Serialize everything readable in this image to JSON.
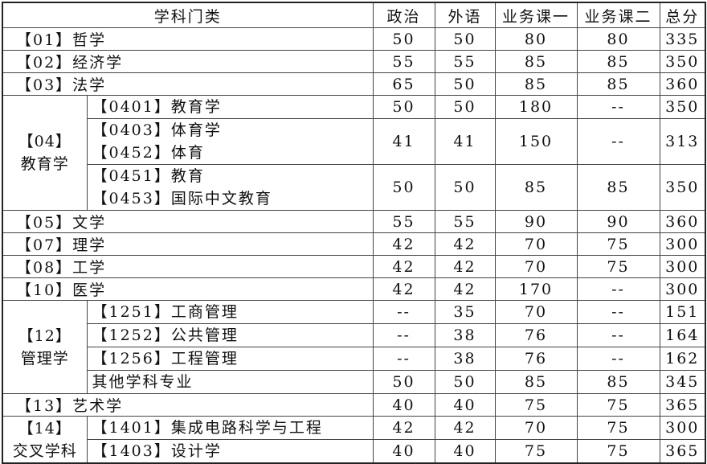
{
  "headers": [
    "学科门类",
    "政治",
    "外语",
    "业务课一",
    "业务课二",
    "总分"
  ],
  "rows": [
    {
      "label": "【01】哲学",
      "scores": [
        "50",
        "50",
        "80",
        "80",
        "335"
      ]
    },
    {
      "label": "【02】经济学",
      "scores": [
        "55",
        "55",
        "85",
        "85",
        "350"
      ]
    },
    {
      "label": "【03】法学",
      "scores": [
        "65",
        "50",
        "85",
        "85",
        "360"
      ]
    },
    {
      "group": [
        "【04】",
        "教育学"
      ],
      "items": [
        {
          "lines": [
            "【0401】教育学"
          ],
          "scores": [
            "50",
            "50",
            "180",
            "--",
            "350"
          ]
        },
        {
          "lines": [
            "【0403】体育学",
            "【0452】体育"
          ],
          "scores": [
            "41",
            "41",
            "150",
            "--",
            "313"
          ]
        },
        {
          "lines": [
            "【0451】教育",
            "【0453】国际中文教育"
          ],
          "scores": [
            "50",
            "50",
            "85",
            "85",
            "350"
          ]
        }
      ]
    },
    {
      "label": "【05】文学",
      "scores": [
        "55",
        "55",
        "90",
        "90",
        "360"
      ]
    },
    {
      "label": "【07】理学",
      "scores": [
        "42",
        "42",
        "70",
        "75",
        "300"
      ]
    },
    {
      "label": "【08】工学",
      "scores": [
        "42",
        "42",
        "70",
        "75",
        "300"
      ]
    },
    {
      "label": "【10】医学",
      "scores": [
        "42",
        "42",
        "170",
        "--",
        "300"
      ]
    },
    {
      "group": [
        "【12】",
        "管理学"
      ],
      "items": [
        {
          "lines": [
            "【1251】工商管理"
          ],
          "scores": [
            "--",
            "35",
            "70",
            "--",
            "151"
          ]
        },
        {
          "lines": [
            "【1252】公共管理"
          ],
          "scores": [
            "--",
            "38",
            "76",
            "--",
            "164"
          ]
        },
        {
          "lines": [
            "【1256】工程管理"
          ],
          "scores": [
            "--",
            "38",
            "76",
            "--",
            "162"
          ]
        },
        {
          "lines": [
            "其他学科专业"
          ],
          "scores": [
            "50",
            "50",
            "85",
            "85",
            "345"
          ]
        }
      ]
    },
    {
      "label": "【13】艺术学",
      "scores": [
        "40",
        "40",
        "75",
        "75",
        "365"
      ]
    },
    {
      "group": [
        "【14】",
        "交叉学科"
      ],
      "items": [
        {
          "lines": [
            "【1401】集成电路科学与工程"
          ],
          "scores": [
            "42",
            "42",
            "70",
            "75",
            "300"
          ]
        },
        {
          "lines": [
            "【1403】设计学"
          ],
          "scores": [
            "40",
            "40",
            "75",
            "75",
            "365"
          ]
        }
      ]
    }
  ]
}
